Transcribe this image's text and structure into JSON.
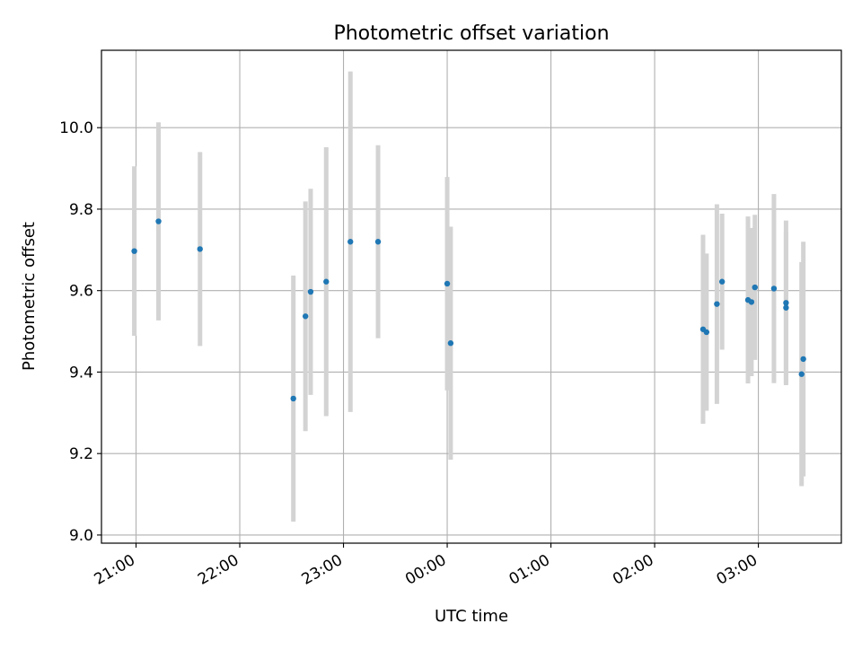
{
  "chart_data": {
    "type": "scatter",
    "title": "Photometric offset variation",
    "xlabel": "UTC time",
    "ylabel": "Photometric offset",
    "x_tick_labels": [
      "21:00",
      "22:00",
      "23:00",
      "00:00",
      "01:00",
      "02:00",
      "03:00"
    ],
    "y_ticks": [
      9.0,
      9.2,
      9.4,
      9.6,
      9.8,
      10.0
    ],
    "y_tick_labels": [
      "9.0",
      "9.2",
      "9.4",
      "9.6",
      "9.8",
      "10.0"
    ],
    "xlim": [
      "20:40",
      "27:48"
    ],
    "ylim": [
      8.98,
      10.19
    ],
    "grid": true,
    "errorbar_color": "#d3d3d3",
    "marker_color": "#1f77b4",
    "points": [
      {
        "x": "20:59",
        "y": 9.697,
        "err": 0.208
      },
      {
        "x": "21:13",
        "y": 9.77,
        "err": 0.243
      },
      {
        "x": "21:37",
        "y": 9.702,
        "err": 0.238
      },
      {
        "x": "22:31",
        "y": 9.335,
        "err": 0.302
      },
      {
        "x": "22:38",
        "y": 9.537,
        "err": 0.282
      },
      {
        "x": "22:41",
        "y": 9.597,
        "err": 0.253
      },
      {
        "x": "22:50",
        "y": 9.622,
        "err": 0.33
      },
      {
        "x": "23:04",
        "y": 9.72,
        "err": 0.418
      },
      {
        "x": "23:20",
        "y": 9.72,
        "err": 0.237
      },
      {
        "x": "24:00",
        "y": 9.617,
        "err": 0.262
      },
      {
        "x": "24:02",
        "y": 9.471,
        "err": 0.286
      },
      {
        "x": "26:28",
        "y": 9.505,
        "err": 0.232
      },
      {
        "x": "26:30",
        "y": 9.498,
        "err": 0.193
      },
      {
        "x": "26:36",
        "y": 9.567,
        "err": 0.245
      },
      {
        "x": "26:39",
        "y": 9.622,
        "err": 0.167
      },
      {
        "x": "26:54",
        "y": 9.577,
        "err": 0.205
      },
      {
        "x": "26:56",
        "y": 9.572,
        "err": 0.182
      },
      {
        "x": "26:58",
        "y": 9.608,
        "err": 0.178
      },
      {
        "x": "27:09",
        "y": 9.605,
        "err": 0.232
      },
      {
        "x": "27:16",
        "y": 9.558,
        "err": 0.185
      },
      {
        "x": "27:16",
        "y": 9.57,
        "err": 0.202
      },
      {
        "x": "27:25",
        "y": 9.395,
        "err": 0.275
      },
      {
        "x": "27:26",
        "y": 9.432,
        "err": 0.288
      }
    ]
  }
}
